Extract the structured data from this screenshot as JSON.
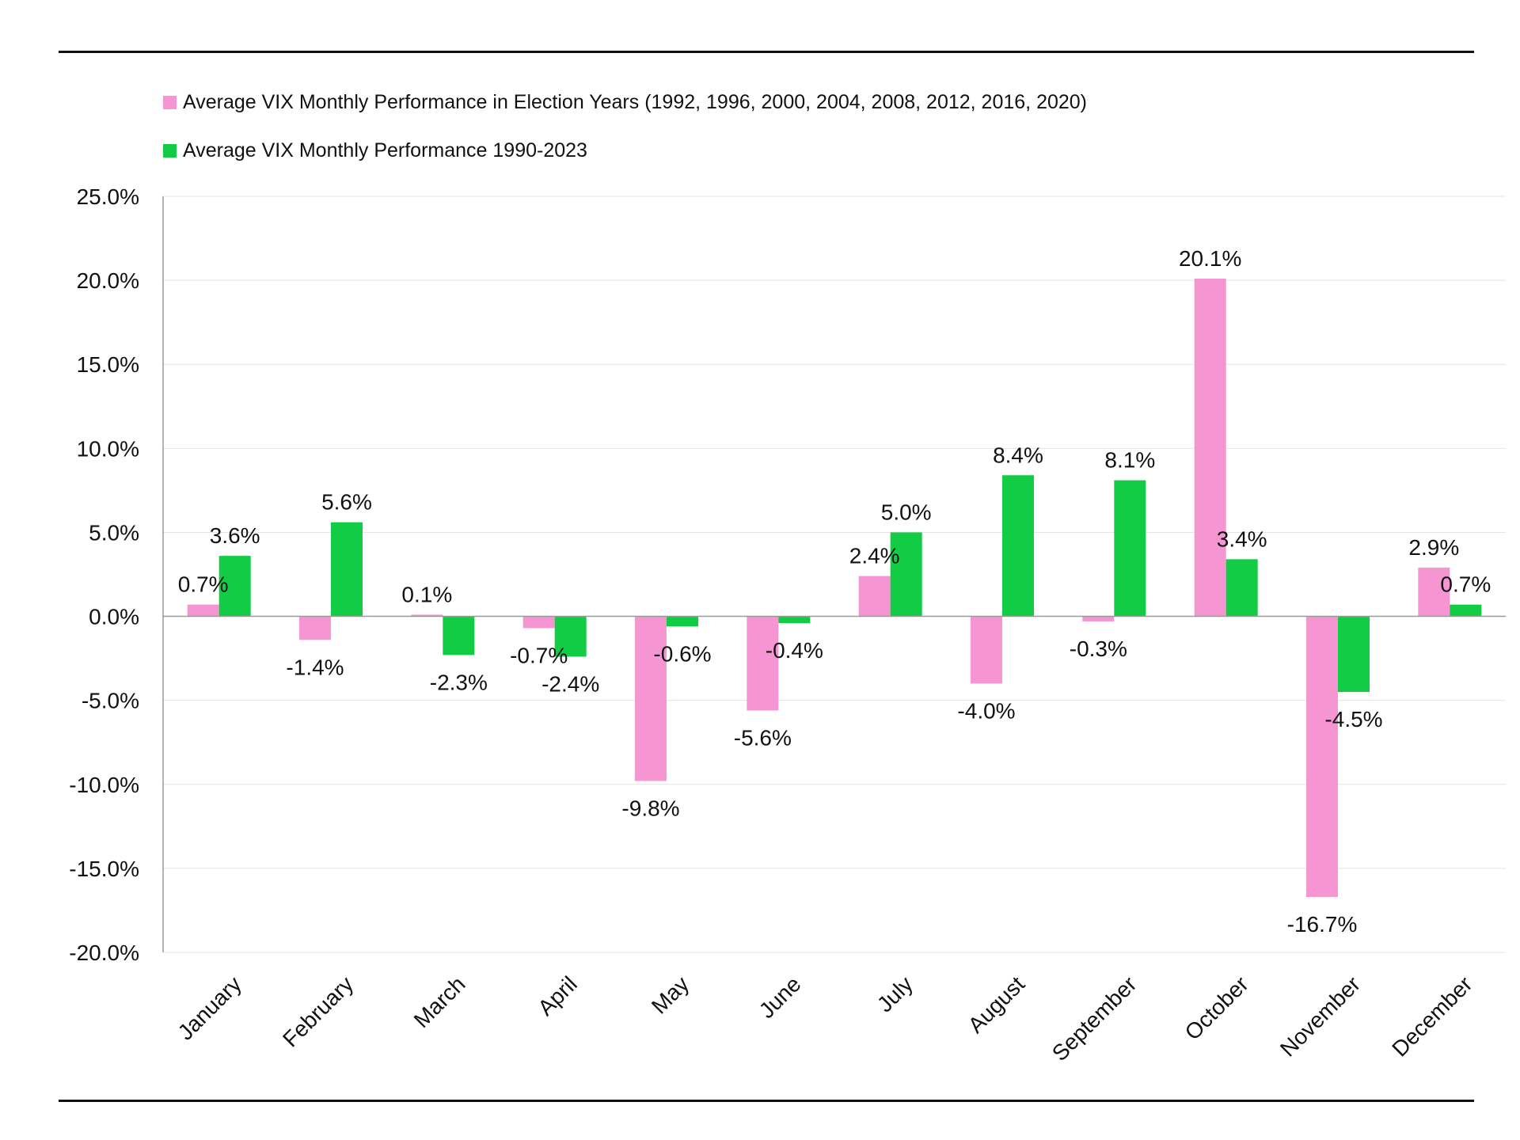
{
  "colors": {
    "election": "#f596d2",
    "all_years": "#12cc45",
    "grid": "#e4e4e4",
    "axis": "#9a9a9a",
    "rule": "#111111"
  },
  "chart_data": {
    "type": "bar",
    "categories": [
      "January",
      "February",
      "March",
      "April",
      "May",
      "June",
      "July",
      "August",
      "September",
      "October",
      "November",
      "December"
    ],
    "series": [
      {
        "name": "Average VIX Monthly Performance in Election Years (1992, 1996, 2000, 2004, 2008, 2012, 2016, 2020)",
        "values": [
          0.7,
          -1.4,
          0.1,
          -0.7,
          -9.8,
          -5.6,
          2.4,
          -4.0,
          -0.3,
          20.1,
          -16.7,
          2.9
        ],
        "labels": [
          "0.7%",
          "-1.4%",
          "0.1%",
          "-0.7%",
          "-9.8%",
          "-5.6%",
          "2.4%",
          "-4.0%",
          "-0.3%",
          "20.1%",
          "-16.7%",
          "2.9%"
        ],
        "color": "#f596d2"
      },
      {
        "name": "Average VIX Monthly Performance 1990-2023",
        "values": [
          3.6,
          5.6,
          -2.3,
          -2.4,
          -0.6,
          -0.4,
          5.0,
          8.4,
          8.1,
          3.4,
          -4.5,
          0.7
        ],
        "labels": [
          "3.6%",
          "5.6%",
          "-2.3%",
          "-2.4%",
          "-0.6%",
          "-0.4%",
          "5.0%",
          "8.4%",
          "8.1%",
          "3.4%",
          "-4.5%",
          "0.7%"
        ],
        "color": "#12cc45"
      }
    ],
    "y_ticks": [
      25,
      20,
      15,
      10,
      5,
      0,
      -5,
      -10,
      -15,
      -20
    ],
    "y_tick_labels": [
      "25.0%",
      "20.0%",
      "15.0%",
      "10.0%",
      "5.0%",
      "0.0%",
      "-5.0%",
      "-10.0%",
      "-15.0%",
      "-20.0%"
    ],
    "ylim": [
      -20,
      25
    ],
    "title": "",
    "xlabel": "",
    "ylabel": "",
    "grid": true,
    "legend_position": "top-left"
  }
}
